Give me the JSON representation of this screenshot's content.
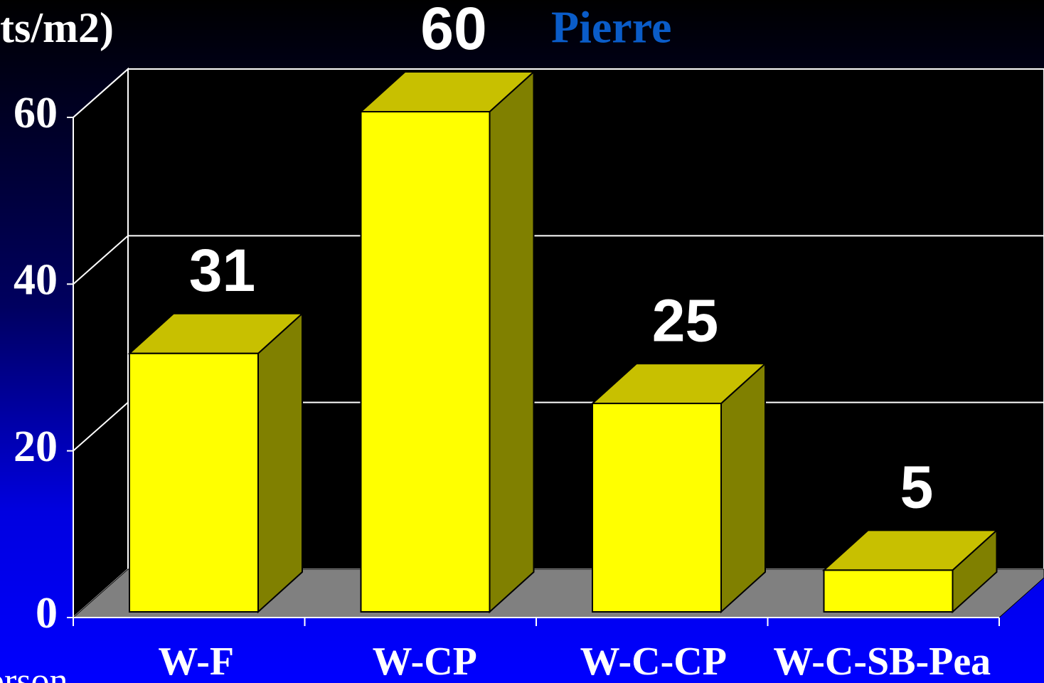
{
  "chart_data": {
    "type": "bar",
    "y_label": "ts/m2)",
    "annotation": "Pierre",
    "note": "orson",
    "categories": [
      "W-F",
      "W-CP",
      "W-C-CP",
      "W-C-SB-Pea"
    ],
    "values": [
      31,
      60,
      25,
      5
    ],
    "color": "#ffff00",
    "ylim": [
      0,
      60
    ],
    "yticks": [
      0,
      20,
      40,
      60
    ],
    "grid": true
  }
}
